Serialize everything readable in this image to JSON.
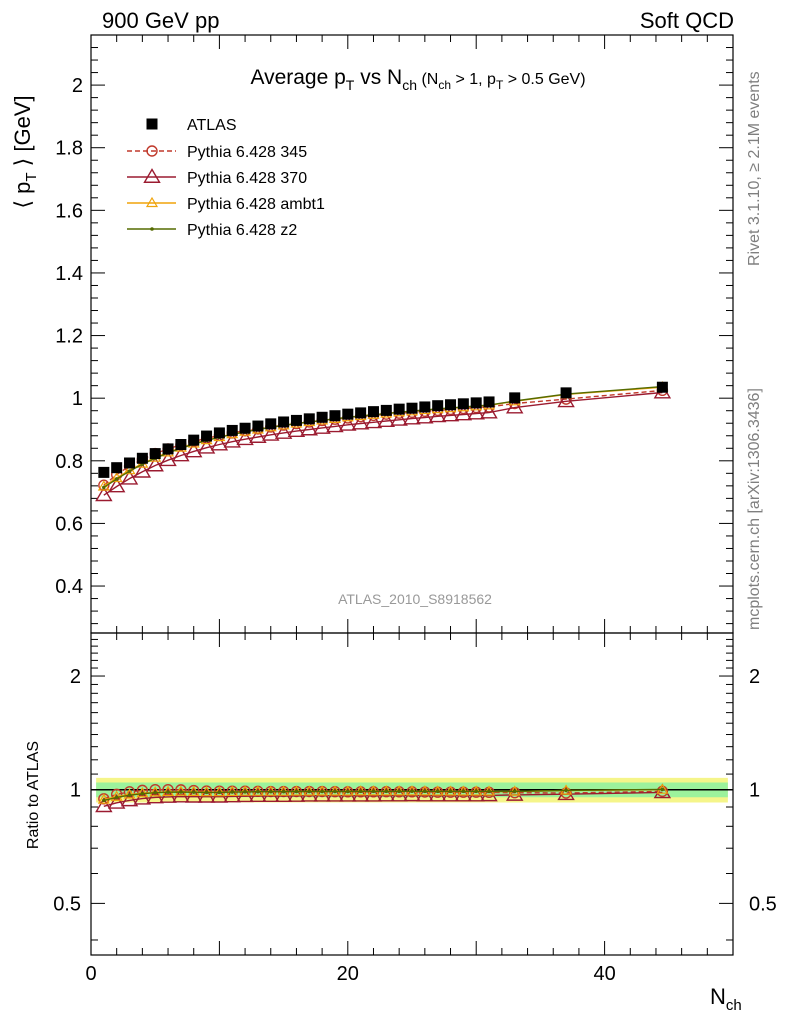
{
  "header": {
    "left": "900 GeV pp",
    "right": "Soft QCD"
  },
  "side_text": {
    "top": "Rivet 3.1.10, ≥ 2.1M events",
    "bottom": "mcplots.cern.ch [arXiv:1306.3436]"
  },
  "watermark": "ATLAS_2010_S8918562",
  "colors": {
    "atlas": "#000000",
    "p345": "#c0392b",
    "p370": "#9b1b30",
    "ambt1": "#f0a30a",
    "z2": "#556b00",
    "band_inner": "#9cf29c",
    "band_outer": "#f5f58a"
  },
  "chart_data": [
    {
      "type": "scatter",
      "title": "Average p_T vs N_ch (N_ch > 1, p_T > 0.5 GeV)",
      "ylabel": "⟨ p_T ⟩ [GeV]",
      "xlim": [
        0,
        50
      ],
      "ylim": [
        0.25,
        2.16
      ],
      "yticks": [
        0.4,
        0.6,
        0.8,
        1,
        1.2,
        1.4,
        1.6,
        1.8,
        2
      ],
      "ytick_labels": [
        "0.4",
        "0.6",
        "0.8",
        "1",
        "1.2",
        "1.4",
        "1.6",
        "1.8",
        "2"
      ],
      "legend_position": "top-left",
      "x": [
        1,
        2,
        3,
        4,
        5,
        6,
        7,
        8,
        9,
        10,
        11,
        12,
        13,
        14,
        15,
        16,
        17,
        18,
        19,
        20,
        21,
        22,
        23,
        24,
        25,
        26,
        27,
        28,
        29,
        30,
        31,
        33,
        37,
        44.5
      ],
      "series": [
        {
          "name": "ATLAS",
          "key": "atlas",
          "marker": "square",
          "values": [
            0.763,
            0.778,
            0.793,
            0.808,
            0.823,
            0.838,
            0.852,
            0.866,
            0.879,
            0.889,
            0.897,
            0.904,
            0.911,
            0.918,
            0.924,
            0.929,
            0.934,
            0.939,
            0.944,
            0.949,
            0.953,
            0.957,
            0.961,
            0.965,
            0.968,
            0.972,
            0.976,
            0.979,
            0.982,
            0.985,
            0.988,
            1.001,
            1.017,
            1.035
          ]
        },
        {
          "name": "Pythia 6.428 345",
          "key": "p345",
          "marker": "circle",
          "dashed": true,
          "values": [
            0.722,
            0.756,
            0.783,
            0.805,
            0.823,
            0.838,
            0.851,
            0.862,
            0.872,
            0.881,
            0.889,
            0.896,
            0.902,
            0.908,
            0.914,
            0.919,
            0.924,
            0.929,
            0.933,
            0.937,
            0.941,
            0.945,
            0.949,
            0.952,
            0.955,
            0.958,
            0.961,
            0.964,
            0.967,
            0.97,
            0.972,
            0.983,
            0.997,
            1.025
          ]
        },
        {
          "name": "Pythia 6.428 370",
          "key": "p370",
          "marker": "triangle",
          "values": [
            0.69,
            0.718,
            0.743,
            0.765,
            0.785,
            0.802,
            0.817,
            0.83,
            0.842,
            0.852,
            0.861,
            0.869,
            0.876,
            0.883,
            0.889,
            0.895,
            0.9,
            0.905,
            0.91,
            0.915,
            0.919,
            0.923,
            0.927,
            0.931,
            0.935,
            0.938,
            0.942,
            0.945,
            0.948,
            0.951,
            0.954,
            0.97,
            0.99,
            1.018
          ]
        },
        {
          "name": "Pythia 6.428 ambt1",
          "key": "ambt1",
          "marker": "triangle-small",
          "values": [
            0.718,
            0.745,
            0.77,
            0.791,
            0.81,
            0.827,
            0.842,
            0.855,
            0.866,
            0.876,
            0.885,
            0.893,
            0.9,
            0.907,
            0.913,
            0.919,
            0.924,
            0.929,
            0.934,
            0.939,
            0.943,
            0.947,
            0.951,
            0.955,
            0.958,
            0.962,
            0.965,
            0.968,
            0.971,
            0.974,
            0.977,
            0.99,
            1.012,
            1.035
          ]
        },
        {
          "name": "Pythia 6.428 z2",
          "key": "z2",
          "marker": "dot",
          "values": [
            0.715,
            0.742,
            0.767,
            0.789,
            0.808,
            0.825,
            0.84,
            0.853,
            0.865,
            0.875,
            0.884,
            0.892,
            0.9,
            0.907,
            0.913,
            0.919,
            0.924,
            0.929,
            0.934,
            0.939,
            0.943,
            0.947,
            0.951,
            0.955,
            0.959,
            0.962,
            0.966,
            0.969,
            0.972,
            0.975,
            0.978,
            0.991,
            1.013,
            1.037
          ]
        }
      ]
    },
    {
      "type": "line",
      "ylabel": "Ratio to ATLAS",
      "xlabel": "N_ch",
      "xlim": [
        0,
        50
      ],
      "ylim": [
        0.365,
        2.6
      ],
      "log_y": true,
      "yticks": [
        0.5,
        1,
        2
      ],
      "ytick_labels": [
        "0.5",
        "1",
        "2"
      ],
      "xticks": [
        0,
        20,
        40
      ],
      "xtick_labels": [
        "0",
        "20",
        "40"
      ],
      "band": {
        "inner": 0.045,
        "outer": 0.075
      },
      "x": [
        1,
        2,
        3,
        4,
        5,
        6,
        7,
        8,
        9,
        10,
        11,
        12,
        13,
        14,
        15,
        16,
        17,
        18,
        19,
        20,
        21,
        22,
        23,
        24,
        25,
        26,
        27,
        28,
        29,
        30,
        31,
        33,
        37,
        44.5
      ],
      "series": [
        {
          "name": "Pythia 6.428 345",
          "key": "p345",
          "values": [
            0.946,
            0.972,
            0.987,
            0.996,
            1.0,
            1.0,
            0.999,
            0.995,
            0.992,
            0.991,
            0.991,
            0.991,
            0.99,
            0.989,
            0.989,
            0.989,
            0.989,
            0.989,
            0.988,
            0.987,
            0.987,
            0.987,
            0.988,
            0.987,
            0.987,
            0.986,
            0.985,
            0.985,
            0.985,
            0.985,
            0.984,
            0.982,
            0.98,
            0.99
          ]
        },
        {
          "name": "Pythia 6.428 370",
          "key": "p370",
          "values": [
            0.904,
            0.923,
            0.937,
            0.947,
            0.954,
            0.957,
            0.959,
            0.958,
            0.958,
            0.958,
            0.96,
            0.961,
            0.962,
            0.962,
            0.962,
            0.963,
            0.964,
            0.964,
            0.964,
            0.964,
            0.964,
            0.964,
            0.965,
            0.965,
            0.966,
            0.965,
            0.965,
            0.965,
            0.965,
            0.965,
            0.966,
            0.969,
            0.973,
            0.984
          ]
        },
        {
          "name": "Pythia 6.428 ambt1",
          "key": "ambt1",
          "values": [
            0.941,
            0.958,
            0.971,
            0.979,
            0.984,
            0.987,
            0.988,
            0.987,
            0.985,
            0.985,
            0.987,
            0.988,
            0.988,
            0.988,
            0.988,
            0.989,
            0.989,
            0.989,
            0.989,
            0.989,
            0.99,
            0.99,
            0.99,
            0.99,
            0.99,
            0.99,
            0.989,
            0.989,
            0.989,
            0.989,
            0.989,
            0.989,
            0.995,
            1.0
          ]
        },
        {
          "name": "Pythia 6.428 z2",
          "key": "z2",
          "values": [
            0.937,
            0.954,
            0.967,
            0.976,
            0.982,
            0.985,
            0.986,
            0.985,
            0.984,
            0.984,
            0.986,
            0.987,
            0.988,
            0.988,
            0.988,
            0.989,
            0.989,
            0.989,
            0.989,
            0.989,
            0.99,
            0.99,
            0.99,
            0.99,
            0.991,
            0.99,
            0.99,
            0.99,
            0.99,
            0.99,
            0.99,
            0.99,
            0.996,
            1.002
          ]
        }
      ]
    }
  ]
}
